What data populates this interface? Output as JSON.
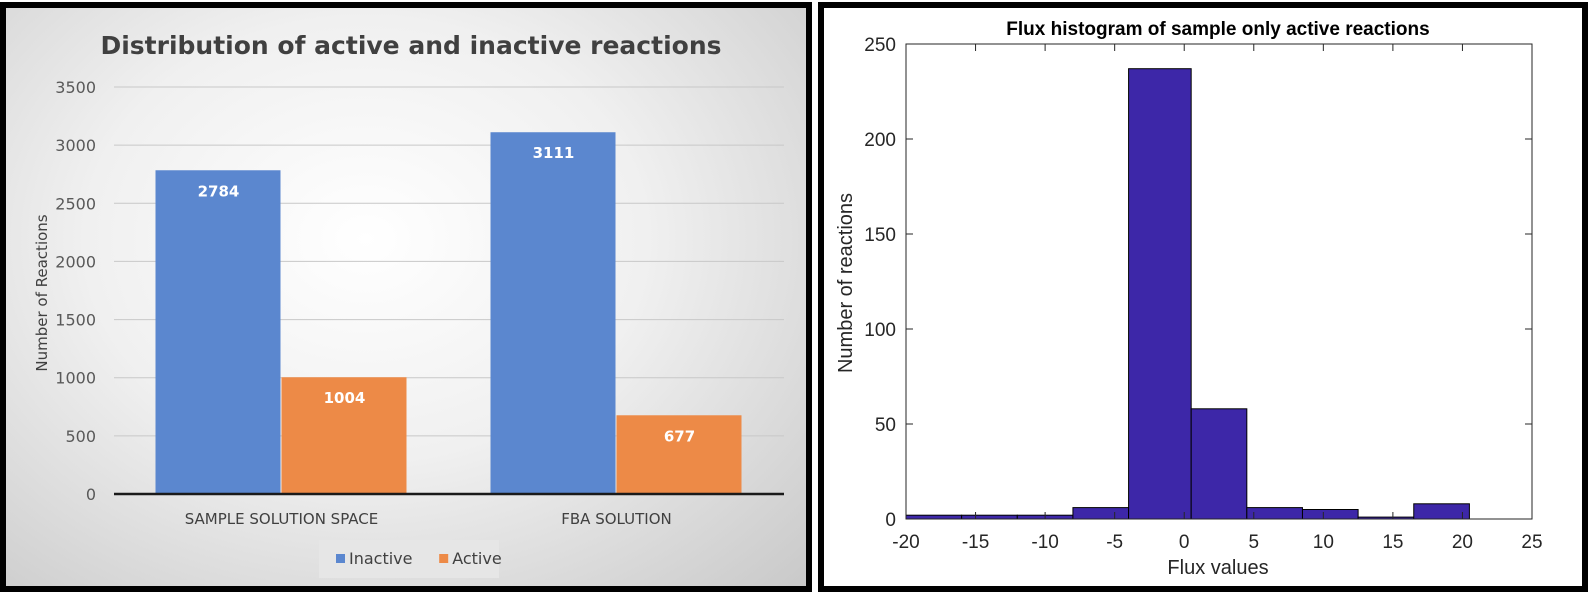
{
  "chart_data": [
    {
      "type": "bar",
      "title": "Distribution of active and inactive reactions",
      "xlabel": "",
      "ylabel": "Number of Reactions",
      "categories": [
        "SAMPLE SOLUTION SPACE",
        "FBA SOLUTION"
      ],
      "series": [
        {
          "name": "Inactive",
          "values": [
            2784,
            3111
          ],
          "color": "#5b87cf"
        },
        {
          "name": "Active",
          "values": [
            1004,
            677
          ],
          "color": "#ed8a47"
        }
      ],
      "ylim": [
        0,
        3500
      ],
      "yticks": [
        0,
        500,
        1000,
        1500,
        2000,
        2500,
        3000,
        3500
      ],
      "grid": true,
      "legend": "bottom",
      "data_labels": true
    },
    {
      "type": "bar",
      "title": "Flux histogram of sample only active reactions",
      "xlabel": "Flux values",
      "ylabel": "Number of reactions",
      "bins": [
        {
          "x0": -20,
          "x1": -16,
          "count": 2
        },
        {
          "x0": -16,
          "x1": -12,
          "count": 2
        },
        {
          "x0": -12,
          "x1": -8,
          "count": 2
        },
        {
          "x0": -8,
          "x1": -4,
          "count": 6
        },
        {
          "x0": -4,
          "x1": 0.5,
          "count": 237
        },
        {
          "x0": 0.5,
          "x1": 4.5,
          "count": 58
        },
        {
          "x0": 4.5,
          "x1": 8.5,
          "count": 6
        },
        {
          "x0": 8.5,
          "x1": 12.5,
          "count": 5
        },
        {
          "x0": 12.5,
          "x1": 16.5,
          "count": 1
        },
        {
          "x0": 16.5,
          "x1": 20.5,
          "count": 8
        }
      ],
      "xlim": [
        -20,
        25
      ],
      "ylim": [
        0,
        250
      ],
      "xticks": [
        -20,
        -15,
        -10,
        -5,
        0,
        5,
        10,
        15,
        20,
        25
      ],
      "yticks": [
        0,
        50,
        100,
        150,
        200,
        250
      ],
      "bar_color": "#3d27a8",
      "grid": false
    }
  ]
}
